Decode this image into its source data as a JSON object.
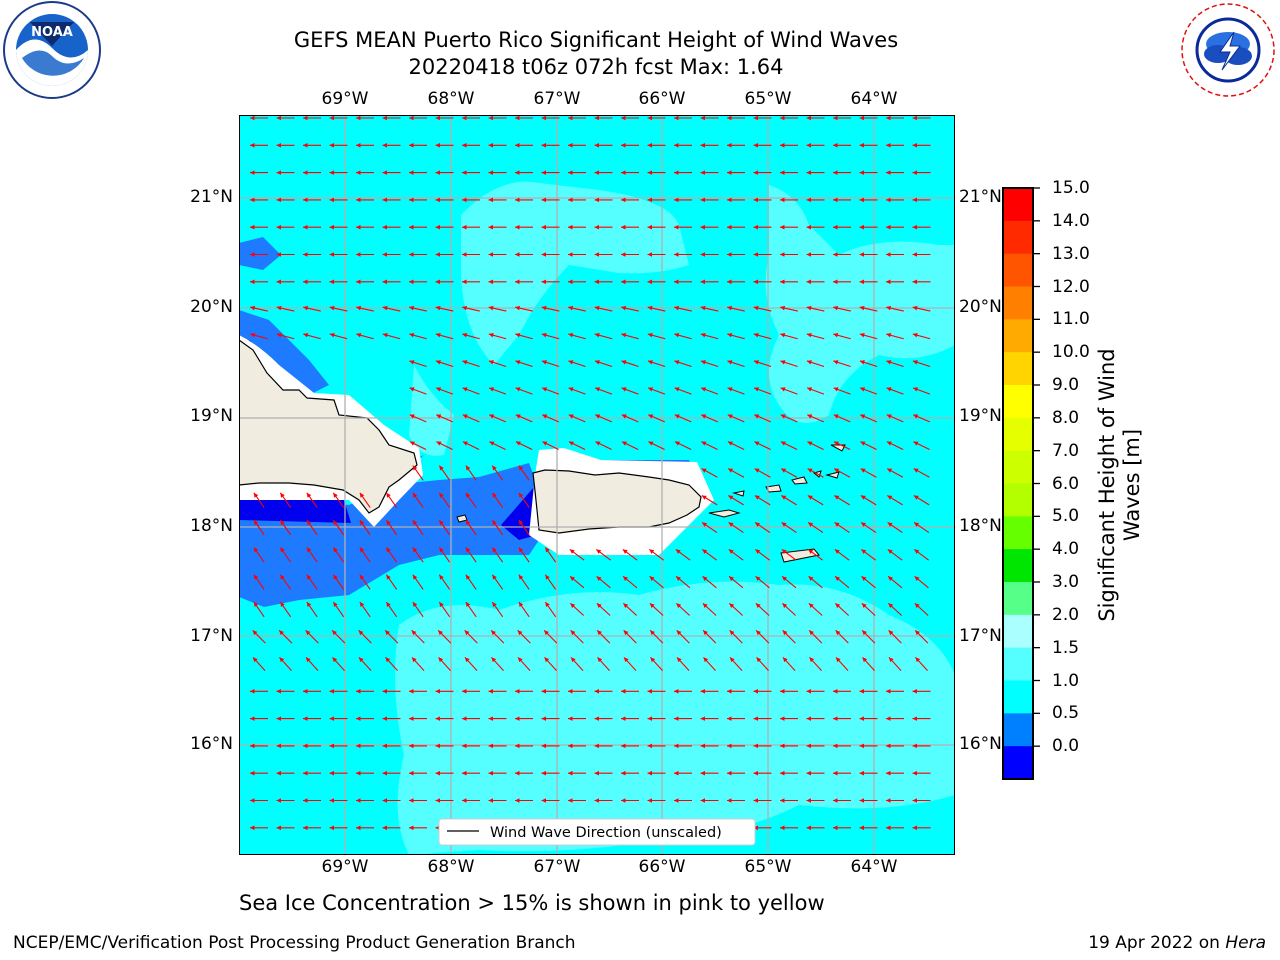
{
  "title_line1": "GEFS MEAN Puerto Rico Significant Height of Wind Waves",
  "title_line2": "20220418 t06z 072h fcst   Max: 1.64",
  "lon_labels": [
    "69°W",
    "68°W",
    "67°W",
    "66°W",
    "65°W",
    "64°W"
  ],
  "lat_labels": [
    "21°N",
    "20°N",
    "19°N",
    "18°N",
    "17°N",
    "16°N"
  ],
  "legend_label": "Wind Wave Direction (unscaled)",
  "colorbar": {
    "label": "Significant Height of Wind Waves [m]",
    "ticks": [
      "15.0",
      "14.0",
      "13.0",
      "12.0",
      "11.0",
      "10.0",
      "9.0",
      "8.0",
      "7.0",
      "6.0",
      "5.0",
      "4.0",
      "3.0",
      "2.0",
      "1.5",
      "1.0",
      "0.5",
      "0.0"
    ],
    "colors": [
      "#ff0000",
      "#ff2a00",
      "#ff5500",
      "#ff8000",
      "#ffaa00",
      "#ffd400",
      "#ffff00",
      "#e6ff00",
      "#ccff00",
      "#b3ff00",
      "#66ff00",
      "#00e600",
      "#55ff88",
      "#aaffff",
      "#55ffff",
      "#00ffff",
      "#0080ff",
      "#0000ff"
    ]
  },
  "map_colors": {
    "ocean": "#00ffff",
    "light_band": "#55ffff",
    "mid_blue": "#1e7bff",
    "deep_blue": "#0000ee",
    "land": "#f0ede0",
    "arrows": "#ff0000",
    "grid": "#b0b0b0"
  },
  "sea_ice_note": "Sea Ice Concentration > 15% is shown in pink to yellow",
  "footer_left": "NCEP/EMC/Verification Post Processing Product Generation Branch",
  "footer_right_date": "19 Apr 2022 on",
  "footer_right_host": "Hera",
  "logos": {
    "left": "NOAA",
    "right_ring": "NATIONAL WEATHER SERVICE"
  },
  "icons": [
    "noaa-logo-icon",
    "nws-logo-icon"
  ]
}
